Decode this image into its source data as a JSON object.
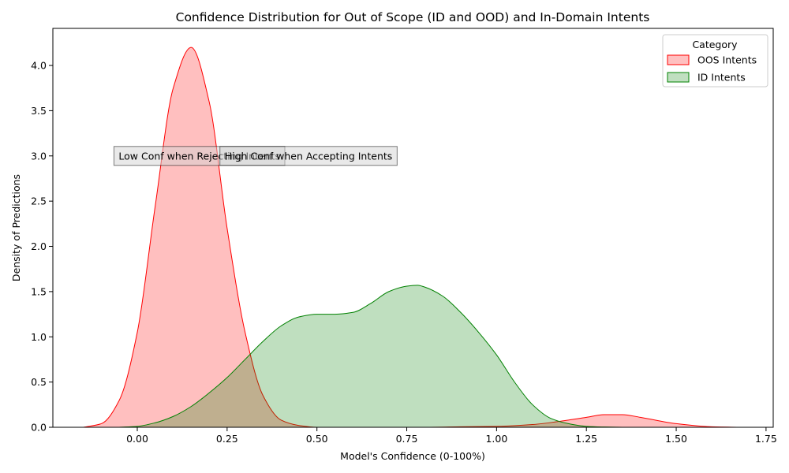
{
  "chart_data": {
    "type": "area",
    "title": "Confidence Distribution for Out of Scope (ID and OOD) and In-Domain Intents",
    "xlabel": "Model's Confidence (0-100%)",
    "ylabel": "Density of Predictions",
    "xlim": [
      -0.235,
      1.77
    ],
    "ylim": [
      0,
      4.41
    ],
    "grid": false,
    "legend_title": "Category",
    "legend_position": "top-right",
    "x_ticks": [
      0.0,
      0.25,
      0.5,
      0.75,
      1.0,
      1.25,
      1.5,
      1.75
    ],
    "x_tick_labels": [
      "0.00",
      "0.25",
      "0.50",
      "0.75",
      "1.00",
      "1.25",
      "1.50",
      "1.75"
    ],
    "y_ticks": [
      0.0,
      0.5,
      1.0,
      1.5,
      2.0,
      2.5,
      3.0,
      3.5,
      4.0
    ],
    "y_tick_labels": [
      "0.0",
      "0.5",
      "1.0",
      "1.5",
      "2.0",
      "2.5",
      "3.0",
      "3.5",
      "4.0"
    ],
    "series": [
      {
        "name": "OOS Intents",
        "color": "#ff0000",
        "fill": "#ffc0c0",
        "x": [
          -0.15,
          -0.1,
          -0.05,
          0.0,
          0.05,
          0.1,
          0.15,
          0.2,
          0.25,
          0.3,
          0.35,
          0.4,
          0.45,
          0.5,
          0.6,
          0.7,
          0.8,
          0.9,
          1.0,
          1.1,
          1.2,
          1.25,
          1.3,
          1.35,
          1.4,
          1.5,
          1.6,
          1.68
        ],
        "y": [
          0.0,
          0.04,
          0.3,
          1.05,
          2.45,
          3.75,
          4.2,
          3.6,
          2.2,
          1.05,
          0.35,
          0.08,
          0.02,
          0.0,
          0.0,
          0.0,
          0.0,
          0.005,
          0.01,
          0.03,
          0.08,
          0.11,
          0.14,
          0.14,
          0.11,
          0.04,
          0.005,
          0.0
        ]
      },
      {
        "name": "ID Intents",
        "color": "#008000",
        "fill": "#c0dfc0",
        "x": [
          -0.05,
          0.0,
          0.05,
          0.1,
          0.15,
          0.2,
          0.25,
          0.3,
          0.35,
          0.4,
          0.45,
          0.5,
          0.55,
          0.6,
          0.65,
          0.7,
          0.75,
          0.78,
          0.8,
          0.85,
          0.9,
          0.95,
          1.0,
          1.05,
          1.1,
          1.15,
          1.2,
          1.25,
          1.3,
          1.35
        ],
        "y": [
          0.0,
          0.01,
          0.05,
          0.12,
          0.23,
          0.38,
          0.55,
          0.75,
          0.95,
          1.12,
          1.22,
          1.25,
          1.25,
          1.27,
          1.37,
          1.5,
          1.56,
          1.57,
          1.55,
          1.45,
          1.27,
          1.05,
          0.8,
          0.5,
          0.25,
          0.1,
          0.04,
          0.01,
          0.003,
          0.0
        ]
      }
    ],
    "annotations": [
      {
        "text": "Low Conf when Rejecting Intents",
        "x": -0.065,
        "y": 3.0
      },
      {
        "text": "High Conf when Accepting Intents",
        "x": 0.23,
        "y": 3.0
      }
    ]
  }
}
